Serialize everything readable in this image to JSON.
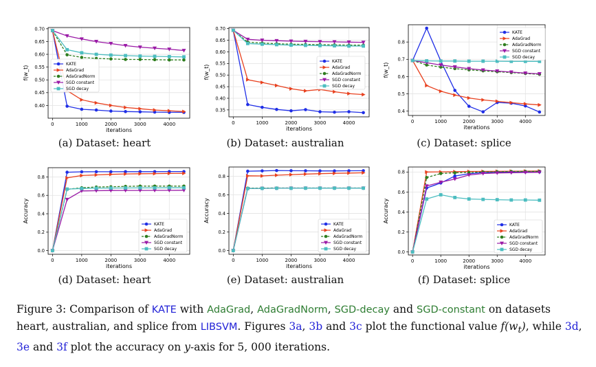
{
  "chart_data": [
    {
      "type": "line",
      "id": "a",
      "caption": "(a) Dataset: heart",
      "ylabel": "f(w_t)",
      "xlabel": "iterations",
      "xlim": [
        -150,
        4700
      ],
      "ylim": [
        0.35,
        0.705
      ],
      "xticks": [
        0,
        1000,
        2000,
        3000,
        4000
      ],
      "yticks": [
        0.4,
        0.45,
        0.5,
        0.55,
        0.6,
        0.65,
        0.7
      ],
      "ytick_labels": [
        "0.40",
        "0.45",
        "0.50",
        "0.55",
        "0.60",
        "0.65",
        "0.70"
      ],
      "legend_pos": "middle-left",
      "x": [
        0,
        500,
        1000,
        1500,
        2000,
        2500,
        3000,
        3500,
        4000,
        4500
      ],
      "series": [
        {
          "name": "KATE",
          "values": [
            0.693,
            0.397,
            0.385,
            0.382,
            0.378,
            0.376,
            0.375,
            0.374,
            0.373,
            0.373
          ]
        },
        {
          "name": "AdaGrad",
          "values": [
            0.693,
            0.458,
            0.422,
            0.41,
            0.4,
            0.392,
            0.387,
            0.382,
            0.379,
            0.376
          ]
        },
        {
          "name": "AdaGradNorm",
          "values": [
            0.693,
            0.598,
            0.588,
            0.584,
            0.582,
            0.58,
            0.58,
            0.579,
            0.578,
            0.578
          ]
        },
        {
          "name": "SGD constant",
          "values": [
            0.693,
            0.672,
            0.66,
            0.65,
            0.642,
            0.634,
            0.628,
            0.624,
            0.62,
            0.615
          ]
        },
        {
          "name": "SGD decay",
          "values": [
            0.693,
            0.618,
            0.606,
            0.6,
            0.597,
            0.595,
            0.593,
            0.592,
            0.591,
            0.59
          ]
        }
      ]
    },
    {
      "type": "line",
      "id": "b",
      "caption": "(b) Dataset: australian",
      "ylabel": "f(w_t)",
      "xlabel": "iterations",
      "xlim": [
        -150,
        4700
      ],
      "ylim": [
        0.32,
        0.705
      ],
      "xticks": [
        0,
        1000,
        2000,
        3000,
        4000
      ],
      "yticks": [
        0.35,
        0.4,
        0.45,
        0.5,
        0.55,
        0.6,
        0.65,
        0.7
      ],
      "ytick_labels": [
        "0.35",
        "0.40",
        "0.45",
        "0.50",
        "0.55",
        "0.60",
        "0.65",
        "0.70"
      ],
      "legend_pos": "middle-right",
      "x": [
        0,
        500,
        1000,
        1500,
        2000,
        2500,
        3000,
        3500,
        4000,
        4500
      ],
      "series": [
        {
          "name": "KATE",
          "values": [
            0.693,
            0.373,
            0.361,
            0.352,
            0.346,
            0.351,
            0.342,
            0.34,
            0.342,
            0.338
          ]
        },
        {
          "name": "AdaGrad",
          "values": [
            0.693,
            0.48,
            0.468,
            0.455,
            0.441,
            0.432,
            0.438,
            0.428,
            0.42,
            0.416
          ]
        },
        {
          "name": "AdaGradNorm",
          "values": [
            0.693,
            0.642,
            0.638,
            0.635,
            0.633,
            0.632,
            0.631,
            0.63,
            0.629,
            0.629
          ]
        },
        {
          "name": "SGD constant",
          "values": [
            0.693,
            0.654,
            0.65,
            0.648,
            0.646,
            0.645,
            0.644,
            0.643,
            0.642,
            0.641
          ]
        },
        {
          "name": "SGD decay",
          "values": [
            0.693,
            0.636,
            0.633,
            0.631,
            0.629,
            0.628,
            0.627,
            0.626,
            0.625,
            0.625
          ]
        }
      ]
    },
    {
      "type": "line",
      "id": "c",
      "caption": "(c) Dataset: splice",
      "ylabel": "f(w_t)",
      "xlabel": "iterations",
      "xlim": [
        -150,
        4700
      ],
      "ylim": [
        0.375,
        0.9
      ],
      "xticks": [
        0,
        1000,
        2000,
        3000,
        4000
      ],
      "yticks": [
        0.4,
        0.5,
        0.6,
        0.7,
        0.8
      ],
      "ytick_labels": [
        "0.4",
        "0.5",
        "0.6",
        "0.7",
        "0.8"
      ],
      "legend_pos": "top-right",
      "x": [
        0,
        500,
        1000,
        1500,
        2000,
        2500,
        3000,
        3500,
        4000,
        4500
      ],
      "series": [
        {
          "name": "KATE",
          "values": [
            0.693,
            0.88,
            0.69,
            0.52,
            0.428,
            0.396,
            0.45,
            0.446,
            0.43,
            0.395
          ]
        },
        {
          "name": "AdaGrad",
          "values": [
            0.693,
            0.548,
            0.515,
            0.493,
            0.476,
            0.465,
            0.457,
            0.449,
            0.442,
            0.436
          ]
        },
        {
          "name": "AdaGradNorm",
          "values": [
            0.693,
            0.667,
            0.655,
            0.646,
            0.639,
            0.633,
            0.628,
            0.623,
            0.618,
            0.613
          ]
        },
        {
          "name": "SGD constant",
          "values": [
            0.693,
            0.68,
            0.667,
            0.656,
            0.646,
            0.638,
            0.632,
            0.626,
            0.62,
            0.616
          ]
        },
        {
          "name": "SGD decay",
          "values": [
            0.693,
            0.691,
            0.69,
            0.69,
            0.689,
            0.689,
            0.689,
            0.688,
            0.688,
            0.688
          ]
        }
      ]
    },
    {
      "type": "line",
      "id": "d",
      "caption": "(d) Dataset: heart",
      "ylabel": "Accuracy",
      "xlabel": "iterations",
      "xlim": [
        -150,
        4700
      ],
      "ylim": [
        -0.04,
        0.9
      ],
      "xticks": [
        0,
        1000,
        2000,
        3000,
        4000
      ],
      "yticks": [
        0.0,
        0.2,
        0.4,
        0.6,
        0.8
      ],
      "ytick_labels": [
        "0.0",
        "0.2",
        "0.4",
        "0.6",
        "0.8"
      ],
      "legend_pos": "bottom-right",
      "x": [
        0,
        500,
        1000,
        1500,
        2000,
        2500,
        3000,
        3500,
        4000,
        4500
      ],
      "series": [
        {
          "name": "KATE",
          "values": [
            0.0,
            0.851,
            0.855,
            0.856,
            0.856,
            0.857,
            0.857,
            0.857,
            0.858,
            0.858
          ]
        },
        {
          "name": "AdaGrad",
          "values": [
            0.0,
            0.79,
            0.815,
            0.822,
            0.828,
            0.832,
            0.834,
            0.836,
            0.838,
            0.839
          ]
        },
        {
          "name": "AdaGradNorm",
          "values": [
            0.0,
            0.665,
            0.682,
            0.69,
            0.693,
            0.697,
            0.7,
            0.7,
            0.7,
            0.7
          ]
        },
        {
          "name": "SGD constant",
          "values": [
            0.0,
            0.555,
            0.648,
            0.65,
            0.652,
            0.653,
            0.653,
            0.654,
            0.654,
            0.655
          ]
        },
        {
          "name": "SGD decay",
          "values": [
            0.0,
            0.668,
            0.674,
            0.677,
            0.679,
            0.68,
            0.681,
            0.681,
            0.682,
            0.682
          ]
        }
      ]
    },
    {
      "type": "line",
      "id": "e",
      "caption": "(e) Dataset: australian",
      "ylabel": "Accuracy",
      "xlabel": "iterations",
      "xlim": [
        -150,
        4700
      ],
      "ylim": [
        -0.04,
        0.9
      ],
      "xticks": [
        0,
        1000,
        2000,
        3000,
        4000
      ],
      "yticks": [
        0.0,
        0.2,
        0.4,
        0.6,
        0.8
      ],
      "ytick_labels": [
        "0.0",
        "0.2",
        "0.4",
        "0.6",
        "0.8"
      ],
      "legend_pos": "bottom-right",
      "x": [
        0,
        500,
        1000,
        1500,
        2000,
        2500,
        3000,
        3500,
        4000,
        4500
      ],
      "series": [
        {
          "name": "KATE",
          "values": [
            0.0,
            0.855,
            0.858,
            0.862,
            0.86,
            0.859,
            0.858,
            0.858,
            0.859,
            0.86
          ]
        },
        {
          "name": "AdaGrad",
          "values": [
            0.0,
            0.805,
            0.804,
            0.812,
            0.818,
            0.824,
            0.828,
            0.832,
            0.835,
            0.838
          ]
        },
        {
          "name": "AdaGradNorm",
          "values": [
            0.0,
            0.672,
            0.673,
            0.674,
            0.674,
            0.674,
            0.674,
            0.674,
            0.674,
            0.674
          ]
        },
        {
          "name": "SGD constant",
          "values": [
            0.0,
            0.668,
            0.67,
            0.671,
            0.672,
            0.672,
            0.672,
            0.672,
            0.672,
            0.672
          ]
        },
        {
          "name": "SGD decay",
          "values": [
            0.0,
            0.668,
            0.67,
            0.671,
            0.671,
            0.672,
            0.672,
            0.672,
            0.672,
            0.672
          ]
        }
      ]
    },
    {
      "type": "line",
      "id": "f",
      "caption": "(f) Dataset: splice",
      "ylabel": "Accuracy",
      "xlabel": "iterations",
      "xlim": [
        -150,
        4700
      ],
      "ylim": [
        -0.03,
        0.85
      ],
      "xticks": [
        0,
        1000,
        2000,
        3000,
        4000
      ],
      "yticks": [
        0.0,
        0.2,
        0.4,
        0.6,
        0.8
      ],
      "ytick_labels": [
        "0.0",
        "0.2",
        "0.4",
        "0.6",
        "0.8"
      ],
      "legend_pos": "bottom-right",
      "x": [
        0,
        500,
        1000,
        1500,
        2000,
        2500,
        3000,
        3500,
        4000,
        4500
      ],
      "series": [
        {
          "name": "KATE",
          "values": [
            0.0,
            0.64,
            0.69,
            0.76,
            0.782,
            0.795,
            0.798,
            0.799,
            0.8,
            0.8
          ]
        },
        {
          "name": "AdaGrad",
          "values": [
            0.0,
            0.8,
            0.801,
            0.803,
            0.805,
            0.806,
            0.807,
            0.808,
            0.809,
            0.81
          ]
        },
        {
          "name": "AdaGradNorm",
          "values": [
            0.0,
            0.745,
            0.785,
            0.792,
            0.795,
            0.8,
            0.802,
            0.805,
            0.806,
            0.807
          ]
        },
        {
          "name": "SGD constant",
          "values": [
            0.0,
            0.66,
            0.698,
            0.73,
            0.77,
            0.785,
            0.79,
            0.793,
            0.795,
            0.797
          ]
        },
        {
          "name": "SGD decay",
          "values": [
            0.0,
            0.53,
            0.572,
            0.545,
            0.53,
            0.526,
            0.523,
            0.52,
            0.52,
            0.518
          ]
        }
      ]
    }
  ],
  "series_styles": [
    {
      "name": "KATE",
      "color": "#1f2ee6",
      "marker": "circle",
      "dash": "solid"
    },
    {
      "name": "AdaGrad",
      "color": "#e8411f",
      "marker": "triangle-right",
      "dash": "solid"
    },
    {
      "name": "AdaGradNorm",
      "color": "#2e7d1e",
      "marker": "circle",
      "dash": "dashed"
    },
    {
      "name": "SGD constant",
      "color": "#9a1aa6",
      "marker": "triangle-down",
      "dash": "solid"
    },
    {
      "name": "SGD decay",
      "color": "#4cbdc0",
      "marker": "square",
      "dash": "solid"
    }
  ],
  "caption": {
    "label": "Figure 3:",
    "t1": "Comparison of",
    "kate": "KATE",
    "t2": "with",
    "adagrad": "AdaGrad",
    "comma1": ",",
    "adagradnorm": "AdaGradNorm",
    "comma2": ",",
    "sgddecay": "SGD-decay",
    "t3": "and",
    "sgdconstant": "SGD-constant",
    "t4": "on datasets heart, australian, and splice from",
    "libsvm": "LIBSVM",
    "t5": ". Figures",
    "r3a": "3a",
    "comma3": ",",
    "r3b": "3b",
    "t6": "and",
    "r3c": "3c",
    "t7": "plot the functional value",
    "math1": "f(w",
    "math1sub": "t",
    "math1end": ")",
    "t8": ", while",
    "r3d": "3d",
    "comma4": ",",
    "r3e": "3e",
    "t9": "and",
    "r3f": "3f",
    "t10": "plot the accuracy on",
    "yvar": "y",
    "t11": "-axis for 5, 000 iterations."
  }
}
